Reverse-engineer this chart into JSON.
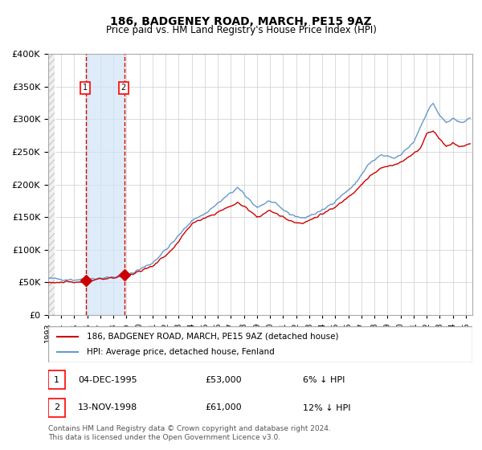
{
  "title": "186, BADGENEY ROAD, MARCH, PE15 9AZ",
  "subtitle": "Price paid vs. HM Land Registry's House Price Index (HPI)",
  "hpi_label": "HPI: Average price, detached house, Fenland",
  "property_label": "186, BADGENEY ROAD, MARCH, PE15 9AZ (detached house)",
  "property_color": "#cc0000",
  "hpi_color": "#6699cc",
  "purchase1_date": 1995.92,
  "purchase1_price": 53000,
  "purchase2_date": 1998.87,
  "purchase2_price": 61000,
  "annotation1": "1   04-DEC-1995      £53,000      6% ↓ HPI",
  "annotation2": "2   13-NOV-1998      £61,000      12% ↓ HPI",
  "footnote": "Contains HM Land Registry data © Crown copyright and database right 2024.\nThis data is licensed under the Open Government Licence v3.0.",
  "ylim": [
    0,
    400000
  ],
  "xlim_start": 1993.0,
  "xlim_end": 2025.5,
  "background_hatch_color": "#e8e8e8",
  "shade_start": 1995.92,
  "shade_end": 1998.87,
  "shade_color": "#d0e4f7"
}
